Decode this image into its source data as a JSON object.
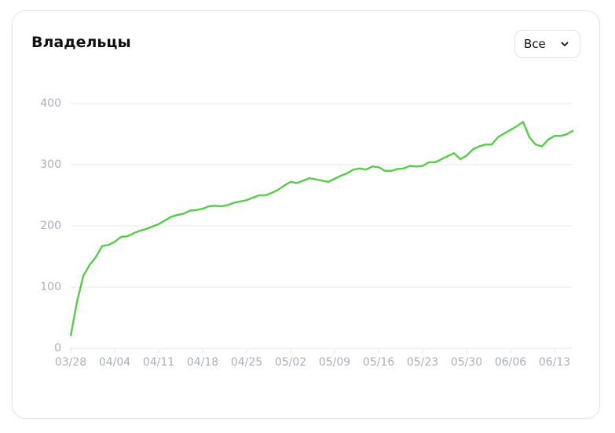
{
  "header": {
    "title": "Владельцы",
    "filter": "Все"
  },
  "chart_data": {
    "type": "line",
    "categories": [
      "03/28",
      null,
      null,
      null,
      null,
      null,
      null,
      "04/04",
      null,
      null,
      null,
      null,
      null,
      null,
      "04/11",
      null,
      null,
      null,
      null,
      null,
      null,
      "04/18",
      null,
      null,
      null,
      null,
      null,
      null,
      "04/25",
      null,
      null,
      null,
      null,
      null,
      null,
      "05/02",
      null,
      null,
      null,
      null,
      null,
      null,
      "05/09",
      null,
      null,
      null,
      null,
      null,
      null,
      "05/16",
      null,
      null,
      null,
      null,
      null,
      null,
      "05/23",
      null,
      null,
      null,
      null,
      null,
      null,
      "05/30",
      null,
      null,
      null,
      null,
      null,
      null,
      "06/06",
      null,
      null,
      null,
      null,
      null,
      null,
      "06/13",
      null,
      null,
      null
    ],
    "values": [
      20,
      76,
      118,
      136,
      149,
      167,
      169,
      174,
      182,
      183,
      188,
      192,
      195,
      199,
      203,
      209,
      215,
      218,
      220,
      225,
      226,
      228,
      232,
      233,
      232,
      234,
      238,
      240,
      242,
      246,
      250,
      250,
      254,
      259,
      266,
      272,
      270,
      274,
      278,
      276,
      274,
      272,
      277,
      282,
      286,
      292,
      294,
      292,
      297,
      296,
      290,
      290,
      293,
      294,
      298,
      297,
      298,
      304,
      304,
      309,
      314,
      319,
      309,
      315,
      325,
      330,
      333,
      333,
      345,
      351,
      357,
      363,
      370,
      345,
      333,
      330,
      341,
      347,
      347,
      350,
      356
    ],
    "color": "#5ccb4f",
    "ylim": [
      0,
      400
    ],
    "yticks": [
      0,
      100,
      200,
      300,
      400
    ],
    "grid": true
  }
}
